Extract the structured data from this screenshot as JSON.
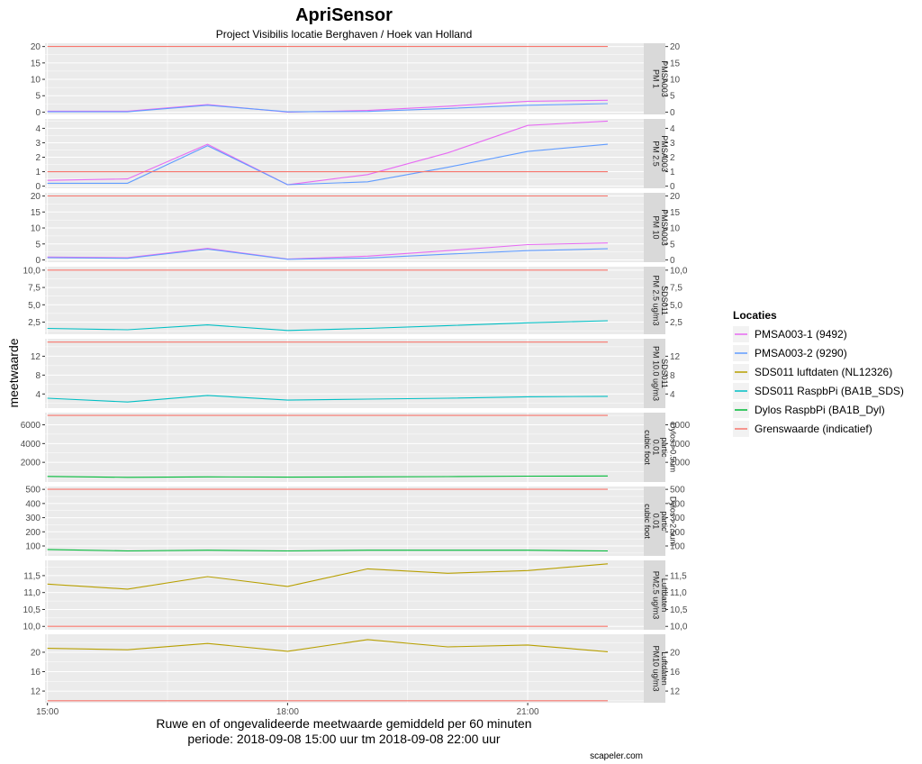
{
  "title": "ApriSensor",
  "subtitle": "Project Visibilis locatie Berghaven / Hoek van Holland",
  "ylabel": "meetwaarde",
  "caption_line1": "Ruwe en of ongevalideerde meetwaarde gemiddeld per 60 minuten",
  "caption_line2": "periode: 2018-09-08 15:00 uur tm 2018-09-08 22:00 uur",
  "credit": "scapeler.com",
  "colors": {
    "panel_bg": "#ebebeb",
    "strip_bg": "#d9d9d9",
    "grid": "#ffffff"
  },
  "legend": {
    "title": "Locaties",
    "items": [
      {
        "label": "PMSA003-1 (9492)",
        "color": "#e76bf3"
      },
      {
        "label": "PMSA003-2 (9290)",
        "color": "#619cff"
      },
      {
        "label": "SDS011 luftdaten (NL12326)",
        "color": "#b79f00"
      },
      {
        "label": "SDS011 RaspbPi (BA1B_SDS)",
        "color": "#00bfc4"
      },
      {
        "label": "Dylos RaspbPi (BA1B_Dyl)",
        "color": "#00ba38"
      },
      {
        "label": "Grenswaarde (indicatief)",
        "color": "#f8766d"
      }
    ]
  },
  "chart_data": {
    "type": "line",
    "x": [
      15,
      16,
      17,
      18,
      19,
      20,
      21,
      22
    ],
    "xlim": [
      14.97,
      22.45
    ],
    "x_ticks": [
      15,
      18,
      21
    ],
    "x_tick_labels": [
      "15:00",
      "18:00",
      "21:00"
    ],
    "facets": [
      {
        "strip": [
          "PMSA003",
          "PM 1"
        ],
        "ylim": [
          -0.7,
          21
        ],
        "yticks": [
          0,
          5,
          10,
          15,
          20
        ],
        "ytick_labels": [
          "0",
          "5",
          "10",
          "15",
          "20"
        ],
        "series": [
          {
            "name": "PMSA003-1 (9492)",
            "color": "#e76bf3",
            "values": [
              0.3,
              0.3,
              2.3,
              0.0,
              0.5,
              1.8,
              3.3,
              3.6
            ]
          },
          {
            "name": "PMSA003-2 (9290)",
            "color": "#619cff",
            "values": [
              0.1,
              0.1,
              2.1,
              0.1,
              0.2,
              1.1,
              2.1,
              2.6
            ]
          },
          {
            "name": "Grenswaarde (indicatief)",
            "color": "#f8766d",
            "values": [
              20,
              20,
              20,
              20,
              20,
              20,
              20,
              20
            ]
          }
        ]
      },
      {
        "strip": [
          "PMSA003",
          "PM 2.5"
        ],
        "ylim": [
          -0.15,
          4.65
        ],
        "yticks": [
          0,
          1,
          2,
          3,
          4
        ],
        "ytick_labels": [
          "0",
          "1",
          "2",
          "3",
          "4"
        ],
        "series": [
          {
            "name": "PMSA003-1 (9492)",
            "color": "#e76bf3",
            "values": [
              0.4,
              0.5,
              2.9,
              0.1,
              0.8,
              2.3,
              4.2,
              4.5
            ]
          },
          {
            "name": "PMSA003-2 (9290)",
            "color": "#619cff",
            "values": [
              0.2,
              0.2,
              2.8,
              0.1,
              0.3,
              1.3,
              2.4,
              2.9
            ]
          },
          {
            "name": "Grenswaarde (indicatief)",
            "color": "#f8766d",
            "values": [
              1,
              1,
              1,
              1,
              1,
              1,
              1,
              1
            ]
          }
        ]
      },
      {
        "strip": [
          "PMSA003",
          "PM 10"
        ],
        "ylim": [
          -0.7,
          21
        ],
        "yticks": [
          0,
          5,
          10,
          15,
          20
        ],
        "ytick_labels": [
          "0",
          "5",
          "10",
          "15",
          "20"
        ],
        "series": [
          {
            "name": "PMSA003-1 (9492)",
            "color": "#e76bf3",
            "values": [
              0.9,
              0.7,
              3.6,
              0.3,
              1.2,
              2.9,
              4.8,
              5.3
            ]
          },
          {
            "name": "PMSA003-2 (9290)",
            "color": "#619cff",
            "values": [
              0.7,
              0.5,
              3.4,
              0.2,
              0.6,
              1.8,
              2.9,
              3.5
            ]
          },
          {
            "name": "Grenswaarde (indicatief)",
            "color": "#f8766d",
            "values": [
              20,
              20,
              20,
              20,
              20,
              20,
              20,
              20
            ]
          }
        ]
      },
      {
        "strip": [
          "SDS011",
          "PM 2.5 ug/m3"
        ],
        "ylim": [
          0.75,
          10.5
        ],
        "yticks": [
          2.5,
          5,
          7.5,
          10
        ],
        "ytick_labels": [
          "2,5",
          "5,0",
          "7,5",
          "10,0"
        ],
        "series": [
          {
            "name": "SDS011 RaspbPi (BA1B_SDS)",
            "color": "#00bfc4",
            "values": [
              1.6,
              1.4,
              2.1,
              1.3,
              1.6,
              2.0,
              2.4,
              2.7
            ]
          },
          {
            "name": "Grenswaarde (indicatief)",
            "color": "#f8766d",
            "values": [
              10,
              10,
              10,
              10,
              10,
              10,
              10,
              10
            ]
          }
        ]
      },
      {
        "strip": [
          "SDS011",
          "PM 10.0 ug/m3"
        ],
        "ylim": [
          1.0,
          15.7
        ],
        "yticks": [
          4,
          8,
          12
        ],
        "ytick_labels": [
          "4",
          "8",
          "12"
        ],
        "series": [
          {
            "name": "SDS011 RaspbPi (BA1B_SDS)",
            "color": "#00bfc4",
            "values": [
              3.1,
              2.3,
              3.7,
              2.7,
              2.9,
              3.1,
              3.4,
              3.5
            ]
          },
          {
            "name": "Grenswaarde (indicatief)",
            "color": "#f8766d",
            "values": [
              15,
              15,
              15,
              15,
              15,
              15,
              15,
              15
            ]
          }
        ]
      },
      {
        "strip": [
          "Dylos >0.5um",
          "partic",
          "0.01",
          "cubic foot"
        ],
        "ylim": [
          -100,
          7300
        ],
        "yticks": [
          2000,
          4000,
          6000
        ],
        "ytick_labels": [
          "2000",
          "4000",
          "6000"
        ],
        "series": [
          {
            "name": "Dylos RaspbPi (BA1B_Dyl)",
            "color": "#00ba38",
            "values": [
              500,
              400,
              450,
              420,
              450,
              480,
              520,
              540
            ]
          },
          {
            "name": "Grenswaarde (indicatief)",
            "color": "#f8766d",
            "values": [
              7000,
              7000,
              7000,
              7000,
              7000,
              7000,
              7000,
              7000
            ]
          }
        ]
      },
      {
        "strip": [
          "Dylos >2.5um",
          "partic",
          "0.01",
          "cubic foot"
        ],
        "ylim": [
          30,
          520
        ],
        "yticks": [
          100,
          200,
          300,
          400,
          500
        ],
        "ytick_labels": [
          "100",
          "200",
          "300",
          "400",
          "500"
        ],
        "series": [
          {
            "name": "Dylos RaspbPi (BA1B_Dyl)",
            "color": "#00ba38",
            "values": [
              75,
              65,
              70,
              65,
              70,
              70,
              70,
              65
            ]
          },
          {
            "name": "Grenswaarde (indicatief)",
            "color": "#f8766d",
            "values": [
              500,
              500,
              500,
              500,
              500,
              500,
              500,
              500
            ]
          }
        ]
      },
      {
        "strip": [
          "Luftdaten",
          "PM2.5 ug/m3"
        ],
        "ylim": [
          9.9,
          11.95
        ],
        "yticks": [
          10.0,
          10.5,
          11.0,
          11.5
        ],
        "ytick_labels": [
          "10,0",
          "10,5",
          "11,0",
          "11,5"
        ],
        "series": [
          {
            "name": "SDS011 luftdaten (NL12326)",
            "color": "#b79f00",
            "values": [
              11.25,
              11.1,
              11.47,
              11.18,
              11.7,
              11.57,
              11.65,
              11.85
            ]
          },
          {
            "name": "Grenswaarde (indicatief)",
            "color": "#f8766d",
            "values": [
              10,
              10,
              10,
              10,
              10,
              10,
              10,
              10
            ]
          }
        ]
      },
      {
        "strip": [
          "Luftdaten",
          "PM10 ug/m3"
        ],
        "ylim": [
          9.6,
          23.7
        ],
        "yticks": [
          12,
          16,
          20
        ],
        "ytick_labels": [
          "12",
          "16",
          "20"
        ],
        "series": [
          {
            "name": "SDS011 luftdaten (NL12326)",
            "color": "#b79f00",
            "values": [
              20.8,
              20.5,
              21.8,
              20.2,
              22.6,
              21.1,
              21.5,
              20.1
            ]
          },
          {
            "name": "Grenswaarde (indicatief)",
            "color": "#f8766d",
            "values": [
              10,
              10,
              10,
              10,
              10,
              10,
              10,
              10
            ]
          }
        ]
      }
    ]
  }
}
